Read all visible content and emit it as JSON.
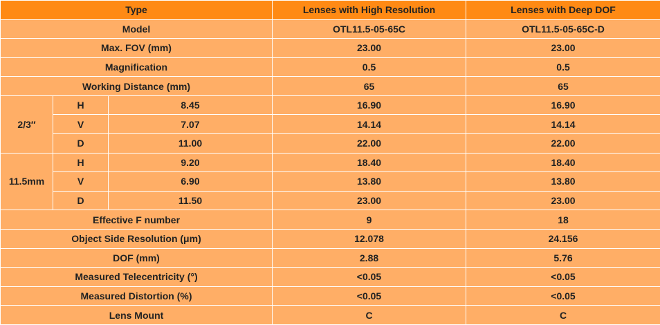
{
  "table": {
    "header": [
      "Type",
      "Lenses with High Resolution",
      "Lenses with Deep DOF"
    ],
    "rows": [
      {
        "label": "Model",
        "values": [
          "OTL11.5-05-65C",
          "OTL11.5-05-65C-D"
        ]
      },
      {
        "label": "Max. FOV (mm)",
        "values": [
          "23.00",
          "23.00"
        ]
      },
      {
        "label": "Magnification",
        "values": [
          "0.5",
          "0.5"
        ]
      },
      {
        "label": "Working Distance (mm)",
        "values": [
          "65",
          "65"
        ]
      }
    ],
    "sensors": [
      {
        "size": "2/3″",
        "axes": [
          {
            "axis": "H",
            "length": "8.45",
            "values": [
              "16.90",
              "16.90"
            ]
          },
          {
            "axis": "V",
            "length": "7.07",
            "values": [
              "14.14",
              "14.14"
            ]
          },
          {
            "axis": "D",
            "length": "11.00",
            "values": [
              "22.00",
              "22.00"
            ]
          }
        ]
      },
      {
        "size": "11.5mm",
        "axes": [
          {
            "axis": "H",
            "length": "9.20",
            "values": [
              "18.40",
              "18.40"
            ]
          },
          {
            "axis": "V",
            "length": "6.90",
            "values": [
              "13.80",
              "13.80"
            ]
          },
          {
            "axis": "D",
            "length": "11.50",
            "values": [
              "23.00",
              "23.00"
            ]
          }
        ]
      }
    ],
    "rows_after": [
      {
        "label": "Effective F number",
        "values": [
          "9",
          "18"
        ]
      },
      {
        "label": "Object Side Resolution (μm)",
        "values": [
          "12.078",
          "24.156"
        ]
      },
      {
        "label": "DOF (mm)",
        "values": [
          "2.88",
          "5.76"
        ]
      },
      {
        "label": "Measured Telecentricity (°)",
        "values": [
          "<0.05",
          "<0.05"
        ]
      },
      {
        "label": "Measured Distortion (%)",
        "values": [
          "<0.05",
          "<0.05"
        ]
      },
      {
        "label": "Lens Mount",
        "values": [
          "C",
          "C"
        ]
      }
    ]
  }
}
